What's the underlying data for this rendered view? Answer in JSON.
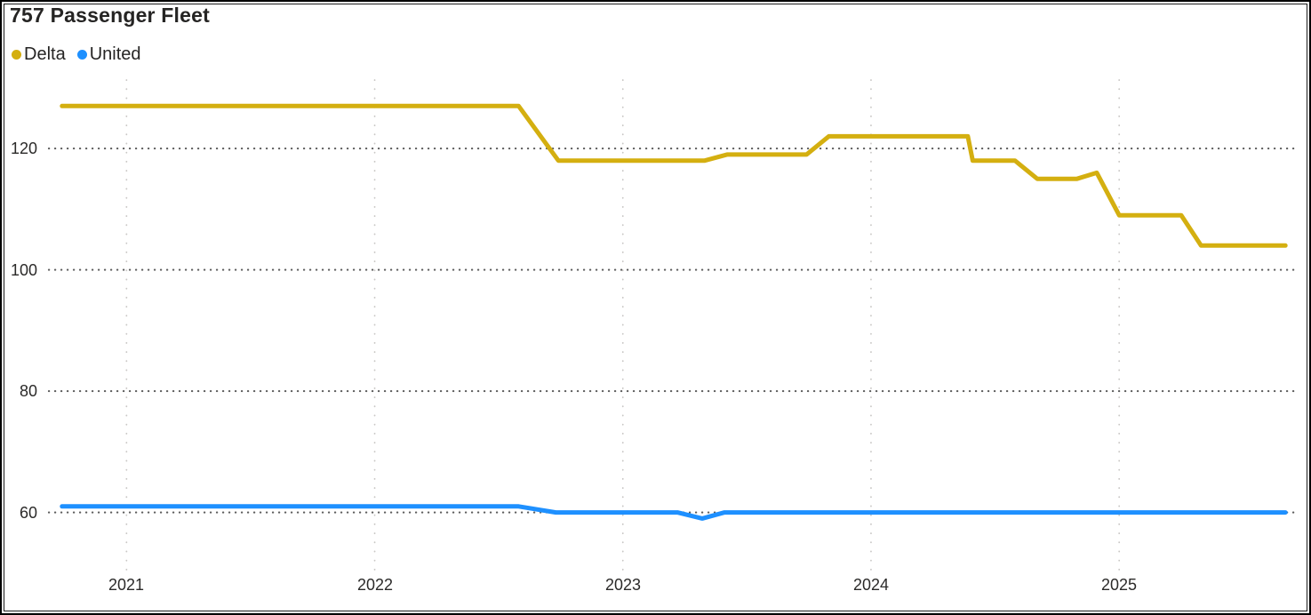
{
  "title": "757 Passenger Fleet",
  "legend": {
    "position": "top-left",
    "items": [
      {
        "label": "Delta",
        "color": "#D4AF10"
      },
      {
        "label": "United",
        "color": "#1E90FF"
      }
    ]
  },
  "chart_data": {
    "type": "line",
    "title": "757 Passenger Fleet",
    "xlabel": "",
    "ylabel": "",
    "x_ticks": [
      "2021",
      "2022",
      "2023",
      "2024",
      "2025"
    ],
    "x_tick_values": [
      2021,
      2022,
      2023,
      2024,
      2025
    ],
    "y_ticks": [
      "120",
      "100",
      "80",
      "60"
    ],
    "y_tick_values": [
      120,
      100,
      80,
      60
    ],
    "xlim": [
      2020.68,
      2025.73
    ],
    "ylim": [
      51,
      131
    ],
    "grid_horizontal": "dotted dark",
    "grid_vertical": "dotted light",
    "legend_position": "top-left",
    "series": [
      {
        "name": "Delta",
        "color": "#D4AF10",
        "points": [
          [
            2020.74,
            127
          ],
          [
            2022.58,
            127
          ],
          [
            2022.74,
            118
          ],
          [
            2023.33,
            118
          ],
          [
            2023.42,
            119
          ],
          [
            2023.74,
            119
          ],
          [
            2023.83,
            122
          ],
          [
            2024.39,
            122
          ],
          [
            2024.41,
            118
          ],
          [
            2024.58,
            118
          ],
          [
            2024.67,
            115
          ],
          [
            2024.83,
            115
          ],
          [
            2024.91,
            116
          ],
          [
            2025.0,
            109
          ],
          [
            2025.25,
            109
          ],
          [
            2025.33,
            104
          ],
          [
            2025.67,
            104
          ]
        ]
      },
      {
        "name": "United",
        "color": "#1E90FF",
        "points": [
          [
            2020.74,
            61
          ],
          [
            2022.58,
            61
          ],
          [
            2022.73,
            60
          ],
          [
            2023.22,
            60
          ],
          [
            2023.32,
            59
          ],
          [
            2023.41,
            60
          ],
          [
            2025.67,
            60
          ]
        ]
      }
    ]
  },
  "colors": {
    "delta": "#D4AF10",
    "united": "#1E90FF",
    "grid_major": "#5c5c5c",
    "grid_vertical": "#c9c7c5",
    "text": "#252423",
    "frame": "#000000",
    "background": "#ffffff"
  }
}
